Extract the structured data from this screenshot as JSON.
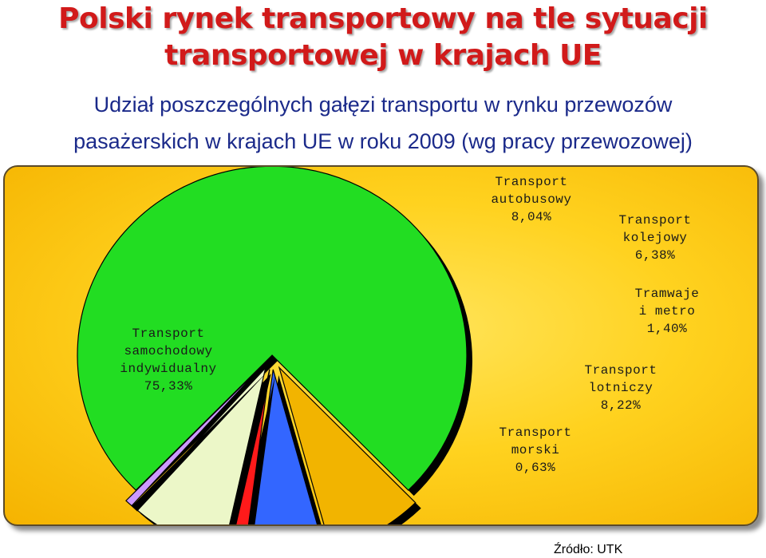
{
  "header": {
    "title_line1": "Polski rynek transportowy na tle sytuacji",
    "title_line2": "transportowej w krajach UE",
    "subtitle_line1": "Udział poszczególnych gałęzi transportu w rynku przewozów",
    "subtitle_line2": "pasażerskich w krajach UE w roku 2009 (wg pracy przewozowej)"
  },
  "source": "Źródło: UTK",
  "chart_data": {
    "type": "pie",
    "title": "Udział poszczególnych gałęzi transportu w rynku przewozów pasażerskich w krajach UE w roku 2009 (wg pracy przewozowej)",
    "slices": [
      {
        "name": "Transport samochodowy indywidualny",
        "value": 75.33,
        "value_label": "75,33%",
        "color": "#22dd22",
        "label_lines": [
          "Transport",
          "samochodowy",
          "indywidualny",
          "75,33%"
        ]
      },
      {
        "name": "Transport autobusowy",
        "value": 8.04,
        "value_label": "8,04%",
        "color": "#f2b400",
        "label_lines": [
          "Transport",
          "autobusowy",
          "8,04%"
        ]
      },
      {
        "name": "Transport kolejowy",
        "value": 6.38,
        "value_label": "6,38%",
        "color": "#3366ff",
        "label_lines": [
          "Transport",
          "kolejowy",
          "6,38%"
        ]
      },
      {
        "name": "Tramwaje i metro",
        "value": 1.4,
        "value_label": "1,40%",
        "color": "#ff1a1a",
        "label_lines": [
          "Tramwaje",
          "i metro",
          "1,40%"
        ]
      },
      {
        "name": "Transport lotniczy",
        "value": 8.22,
        "value_label": "8,22%",
        "color": "#ecf7c8",
        "label_lines": [
          "Transport",
          "lotniczy",
          "8,22%"
        ]
      },
      {
        "name": "Transport morski",
        "value": 0.63,
        "value_label": "0,63%",
        "color": "#cc99ff",
        "label_lines": [
          "Transport",
          "morski",
          "0,63%"
        ]
      }
    ]
  }
}
